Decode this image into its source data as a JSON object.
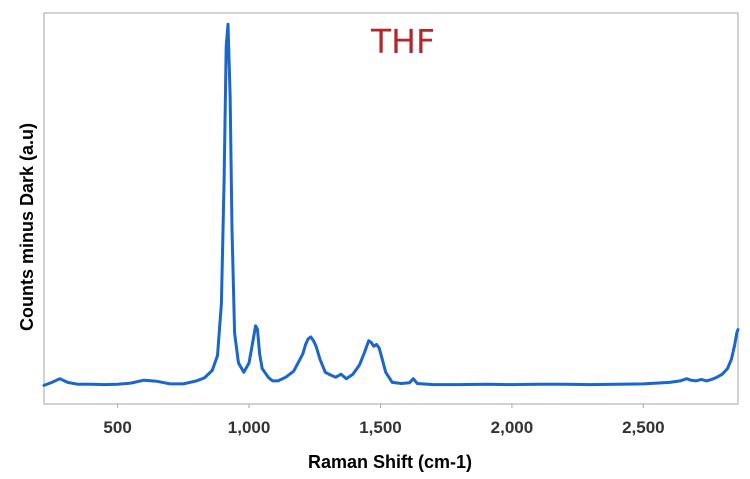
{
  "chart_data": {
    "type": "line",
    "title": "THF",
    "xlabel": "Raman Shift (cm-1)",
    "ylabel": "Counts minus Dark (a.u)",
    "xlim": [
      220,
      2860
    ],
    "ylim": [
      -0.05,
      1.0
    ],
    "xticks": [
      500,
      1000,
      1500,
      2000,
      2500
    ],
    "xtick_labels": [
      "500",
      "1,000",
      "1,500",
      "2,000",
      "2,500"
    ],
    "y_tick_labels_shown": false,
    "grid": false,
    "legend": "none",
    "series": [
      {
        "x": [
          220,
          250,
          280,
          310,
          350,
          400,
          450,
          500,
          550,
          600,
          650,
          700,
          750,
          800,
          830,
          860,
          880,
          895,
          905,
          913,
          920,
          928,
          935,
          945,
          960,
          980,
          1000,
          1015,
          1025,
          1032,
          1040,
          1050,
          1060,
          1075,
          1090,
          1110,
          1140,
          1170,
          1190,
          1205,
          1215,
          1225,
          1235,
          1245,
          1255,
          1270,
          1290,
          1310,
          1330,
          1350,
          1370,
          1395,
          1420,
          1440,
          1455,
          1465,
          1475,
          1485,
          1495,
          1505,
          1520,
          1545,
          1580,
          1610,
          1625,
          1640,
          1700,
          1800,
          1900,
          2000,
          2100,
          2200,
          2300,
          2400,
          2500,
          2550,
          2600,
          2640,
          2665,
          2680,
          2700,
          2720,
          2740,
          2760,
          2780,
          2800,
          2820,
          2835,
          2848,
          2855,
          2860
        ],
        "y": [
          0.0,
          0.008,
          0.018,
          0.008,
          0.003,
          0.003,
          0.002,
          0.003,
          0.006,
          0.014,
          0.011,
          0.004,
          0.004,
          0.012,
          0.02,
          0.04,
          0.08,
          0.22,
          0.55,
          0.91,
          0.97,
          0.78,
          0.42,
          0.14,
          0.06,
          0.035,
          0.06,
          0.12,
          0.16,
          0.15,
          0.085,
          0.045,
          0.035,
          0.02,
          0.012,
          0.012,
          0.022,
          0.038,
          0.065,
          0.085,
          0.11,
          0.125,
          0.13,
          0.12,
          0.105,
          0.07,
          0.035,
          0.028,
          0.022,
          0.03,
          0.018,
          0.03,
          0.055,
          0.09,
          0.12,
          0.115,
          0.105,
          0.11,
          0.1,
          0.075,
          0.035,
          0.008,
          0.005,
          0.007,
          0.018,
          0.005,
          0.002,
          0.002,
          0.003,
          0.002,
          0.003,
          0.003,
          0.002,
          0.003,
          0.004,
          0.006,
          0.008,
          0.012,
          0.018,
          0.014,
          0.012,
          0.016,
          0.012,
          0.016,
          0.022,
          0.03,
          0.045,
          0.07,
          0.11,
          0.14,
          0.15
        ]
      }
    ],
    "colors": {
      "line": "#1a66cc",
      "title": "#b3262a",
      "frame": "#a6a6a6"
    }
  }
}
